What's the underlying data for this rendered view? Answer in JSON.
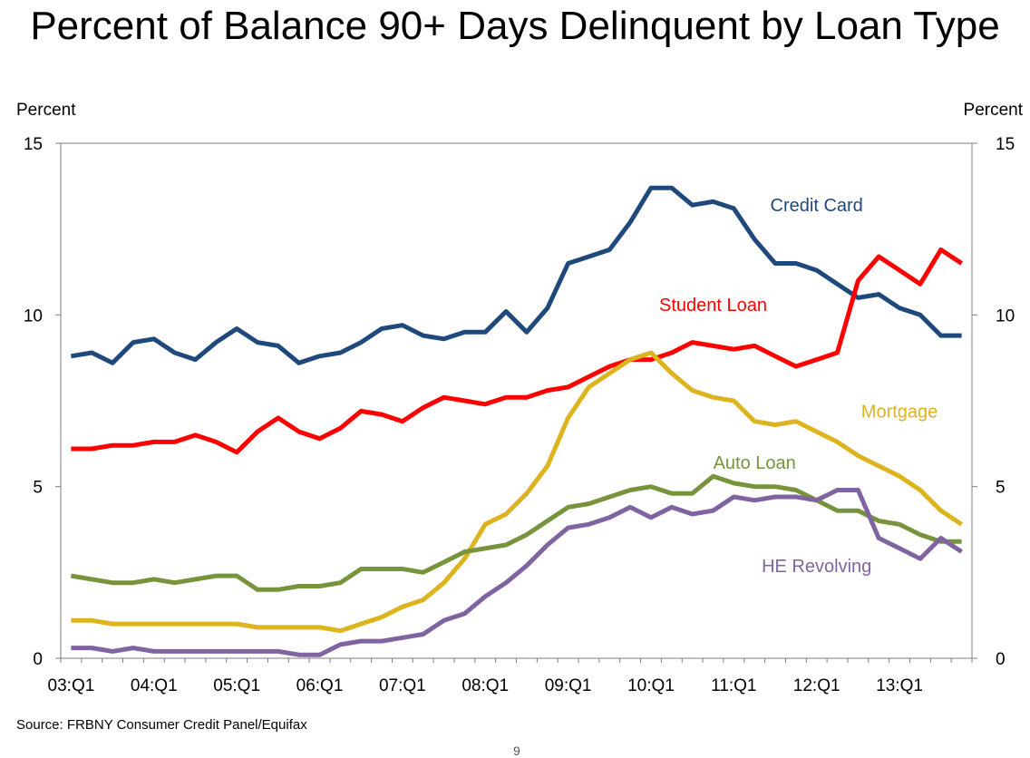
{
  "chart_data": {
    "type": "line",
    "title": "Percent of Balance 90+ Days Delinquent by Loan Type",
    "ylabel_left": "Percent",
    "ylabel_right": "Percent",
    "ylim": [
      0,
      15
    ],
    "yticks": [
      0,
      5,
      10,
      15
    ],
    "xlabel": "",
    "x_tick_labels": [
      "03:Q1",
      "04:Q1",
      "05:Q1",
      "06:Q1",
      "07:Q1",
      "08:Q1",
      "09:Q1",
      "10:Q1",
      "11:Q1",
      "12:Q1",
      "13:Q1"
    ],
    "x_start": "2003:Q1",
    "x_end": "2013:Q4",
    "quarters_count": 44,
    "grid": false,
    "series": [
      {
        "name": "Credit Card",
        "color": "#1f497d",
        "values": [
          8.8,
          8.9,
          8.6,
          9.2,
          9.3,
          8.9,
          8.7,
          9.2,
          9.6,
          9.2,
          9.1,
          8.6,
          8.8,
          8.9,
          9.2,
          9.6,
          9.7,
          9.4,
          9.3,
          9.5,
          9.5,
          10.1,
          9.5,
          10.2,
          11.5,
          11.7,
          11.9,
          12.7,
          13.7,
          13.7,
          13.2,
          13.3,
          13.1,
          12.2,
          11.5,
          11.5,
          11.3,
          10.9,
          10.5,
          10.6,
          10.2,
          10.0,
          9.4,
          9.4
        ]
      },
      {
        "name": "Student Loan",
        "color": "#ff0000",
        "values": [
          6.1,
          6.1,
          6.2,
          6.2,
          6.3,
          6.3,
          6.5,
          6.3,
          6.0,
          6.6,
          7.0,
          6.6,
          6.4,
          6.7,
          7.2,
          7.1,
          6.9,
          7.3,
          7.6,
          7.5,
          7.4,
          7.6,
          7.6,
          7.8,
          7.9,
          8.2,
          8.5,
          8.7,
          8.7,
          8.9,
          9.2,
          9.1,
          9.0,
          9.1,
          8.8,
          8.5,
          8.7,
          8.9,
          11.0,
          11.7,
          11.3,
          10.9,
          11.9,
          11.5
        ]
      },
      {
        "name": "Mortgage",
        "color": "#ddb31e",
        "values": [
          1.1,
          1.1,
          1.0,
          1.0,
          1.0,
          1.0,
          1.0,
          1.0,
          1.0,
          0.9,
          0.9,
          0.9,
          0.9,
          0.8,
          1.0,
          1.2,
          1.5,
          1.7,
          2.2,
          2.9,
          3.9,
          4.2,
          4.8,
          5.6,
          7.0,
          7.9,
          8.3,
          8.7,
          8.9,
          8.3,
          7.8,
          7.6,
          7.5,
          6.9,
          6.8,
          6.9,
          6.6,
          6.3,
          5.9,
          5.6,
          5.3,
          4.9,
          4.3,
          3.9
        ]
      },
      {
        "name": "Auto Loan",
        "color": "#77933c",
        "values": [
          2.4,
          2.3,
          2.2,
          2.2,
          2.3,
          2.2,
          2.3,
          2.4,
          2.4,
          2.0,
          2.0,
          2.1,
          2.1,
          2.2,
          2.6,
          2.6,
          2.6,
          2.5,
          2.8,
          3.1,
          3.2,
          3.3,
          3.6,
          4.0,
          4.4,
          4.5,
          4.7,
          4.9,
          5.0,
          4.8,
          4.8,
          5.3,
          5.1,
          5.0,
          5.0,
          4.9,
          4.6,
          4.3,
          4.3,
          4.0,
          3.9,
          3.6,
          3.4,
          3.4
        ]
      },
      {
        "name": "HE Revolving",
        "color": "#8064a2",
        "values": [
          0.3,
          0.3,
          0.2,
          0.3,
          0.2,
          0.2,
          0.2,
          0.2,
          0.2,
          0.2,
          0.2,
          0.1,
          0.1,
          0.4,
          0.5,
          0.5,
          0.6,
          0.7,
          1.1,
          1.3,
          1.8,
          2.2,
          2.7,
          3.3,
          3.8,
          3.9,
          4.1,
          4.4,
          4.1,
          4.4,
          4.2,
          4.3,
          4.7,
          4.6,
          4.7,
          4.7,
          4.6,
          4.9,
          4.9,
          3.5,
          3.2,
          2.9,
          3.5,
          3.1
        ]
      }
    ]
  },
  "footer": {
    "source": "Source: FRBNY Consumer Credit Panel/Equifax",
    "page_number": "9"
  }
}
